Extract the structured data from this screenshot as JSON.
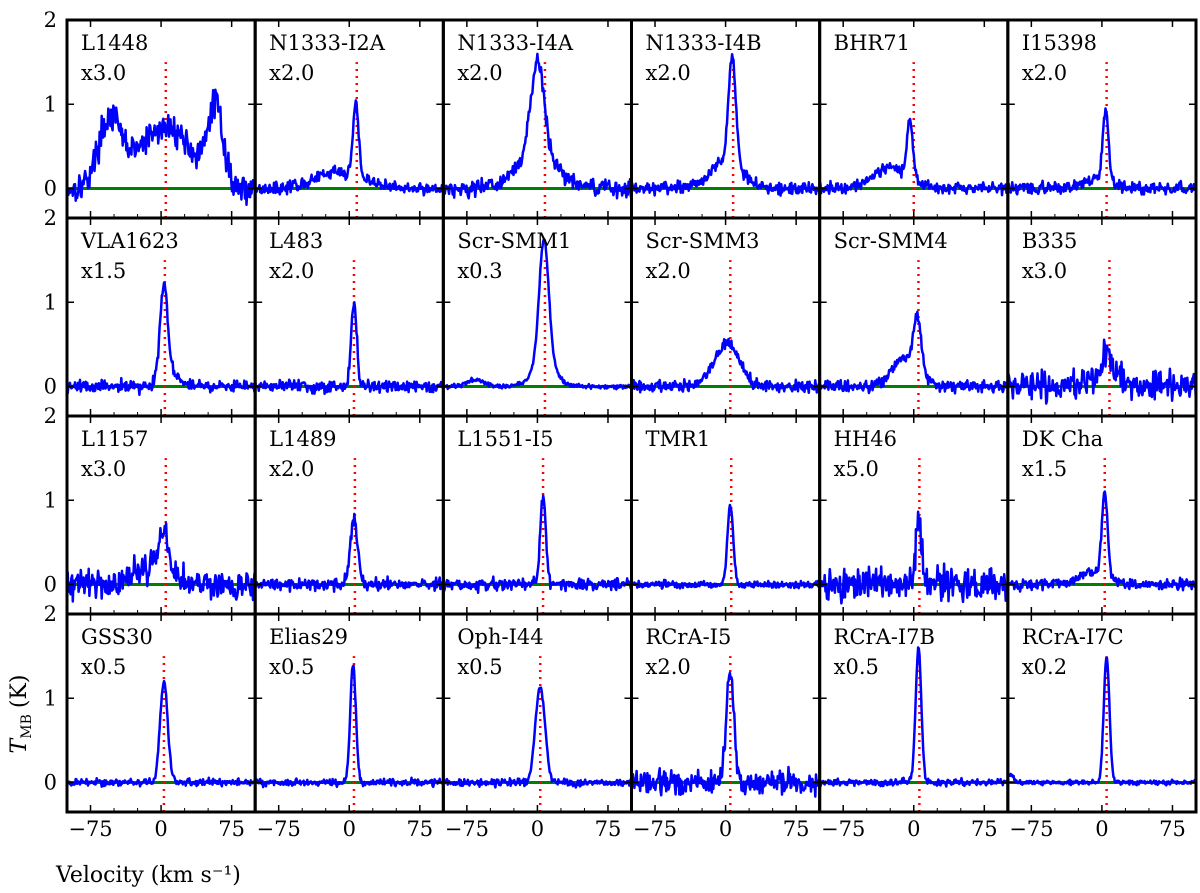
{
  "chart_data": {
    "type": "line",
    "layout": "4x6 grid of spectra sharing axes",
    "xlabel": "Velocity (km s⁻¹)",
    "ylabel": "T_MB (K)",
    "ylabel_main": "T",
    "ylabel_sub": "MB",
    "ylabel_unit": "(K)",
    "xlim": [
      -100,
      100
    ],
    "ylim": [
      -0.35,
      2.0
    ],
    "xticks": [
      -75,
      0,
      75
    ],
    "xtick_labels": [
      "−75",
      "0",
      "75"
    ],
    "yticks": [
      0,
      1,
      2
    ],
    "ytick_labels": [
      "0",
      "1",
      "2"
    ],
    "colors": {
      "spectrum": "#0000ff",
      "baseline": "#008000",
      "marker": "#ff0000",
      "axes": "#000000"
    },
    "panels": [
      {
        "name": "L1448",
        "scale": "x3.0",
        "v_marker": 5,
        "components": [
          {
            "v": -55,
            "amp": 0.75,
            "w": 12
          },
          {
            "v": -10,
            "amp": 0.5,
            "w": 25
          },
          {
            "v": 20,
            "amp": 0.4,
            "w": 20
          },
          {
            "v": 58,
            "amp": 0.95,
            "w": 8
          }
        ],
        "noise": 0.12
      },
      {
        "name": "N1333-I2A",
        "scale": "x2.0",
        "v_marker": 8,
        "components": [
          {
            "v": 7,
            "amp": 0.85,
            "w": 3
          },
          {
            "v": -10,
            "amp": 0.2,
            "w": 25
          }
        ],
        "noise": 0.05
      },
      {
        "name": "N1333-I4A",
        "scale": "x2.0",
        "v_marker": 8,
        "components": [
          {
            "v": 0,
            "amp": 1.1,
            "w": 7
          },
          {
            "v": 0,
            "amp": 0.4,
            "w": 22
          }
        ],
        "noise": 0.07
      },
      {
        "name": "N1333-I4B",
        "scale": "x2.0",
        "v_marker": 8,
        "components": [
          {
            "v": 7,
            "amp": 1.3,
            "w": 4
          },
          {
            "v": 0,
            "amp": 0.3,
            "w": 18
          }
        ],
        "noise": 0.05
      },
      {
        "name": "BHR71",
        "scale": "",
        "v_marker": 0,
        "components": [
          {
            "v": -4,
            "amp": 0.7,
            "w": 3
          },
          {
            "v": -25,
            "amp": 0.25,
            "w": 20
          }
        ],
        "noise": 0.05
      },
      {
        "name": "I15398",
        "scale": "x2.0",
        "v_marker": 5,
        "components": [
          {
            "v": 4,
            "amp": 0.85,
            "w": 3
          },
          {
            "v": -5,
            "amp": 0.12,
            "w": 15
          }
        ],
        "noise": 0.05
      },
      {
        "name": "VLA1623",
        "scale": "x1.5",
        "v_marker": 4,
        "components": [
          {
            "v": 3,
            "amp": 1.1,
            "w": 4
          },
          {
            "v": 10,
            "amp": 0.15,
            "w": 10
          }
        ],
        "noise": 0.05
      },
      {
        "name": "L483",
        "scale": "x2.0",
        "v_marker": 5,
        "components": [
          {
            "v": 5,
            "amp": 1.0,
            "w": 3
          }
        ],
        "noise": 0.05
      },
      {
        "name": "Scr-SMM1",
        "scale": "x0.3",
        "v_marker": 8,
        "components": [
          {
            "v": 7,
            "amp": 1.45,
            "w": 5
          },
          {
            "v": 7,
            "amp": 0.3,
            "w": 12
          },
          {
            "v": -65,
            "amp": 0.08,
            "w": 10
          }
        ],
        "noise": 0.02
      },
      {
        "name": "Scr-SMM3",
        "scale": "x2.0",
        "v_marker": 5,
        "components": [
          {
            "v": 0,
            "amp": 0.45,
            "w": 14
          },
          {
            "v": 5,
            "amp": 0.1,
            "w": 6
          }
        ],
        "noise": 0.05
      },
      {
        "name": "Scr-SMM4",
        "scale": "",
        "v_marker": 5,
        "components": [
          {
            "v": 4,
            "amp": 0.6,
            "w": 4
          },
          {
            "v": -8,
            "amp": 0.35,
            "w": 14
          }
        ],
        "noise": 0.05
      },
      {
        "name": "B335",
        "scale": "x3.0",
        "v_marker": 8,
        "components": [
          {
            "v": 6,
            "amp": 0.35,
            "w": 5
          },
          {
            "v": 0,
            "amp": 0.1,
            "w": 20
          }
        ],
        "noise": 0.12
      },
      {
        "name": "L1157",
        "scale": "x3.0",
        "v_marker": 5,
        "components": [
          {
            "v": 3,
            "amp": 0.5,
            "w": 5
          },
          {
            "v": -10,
            "amp": 0.2,
            "w": 20
          }
        ],
        "noise": 0.12
      },
      {
        "name": "L1489",
        "scale": "x2.0",
        "v_marker": 6,
        "components": [
          {
            "v": 5,
            "amp": 0.75,
            "w": 4
          }
        ],
        "noise": 0.05
      },
      {
        "name": "L1551-I5",
        "scale": "",
        "v_marker": 6,
        "components": [
          {
            "v": 6,
            "amp": 1.05,
            "w": 3
          }
        ],
        "noise": 0.05
      },
      {
        "name": "TMR1",
        "scale": "",
        "v_marker": 6,
        "components": [
          {
            "v": 5,
            "amp": 0.95,
            "w": 3
          }
        ],
        "noise": 0.03
      },
      {
        "name": "HH46",
        "scale": "x5.0",
        "v_marker": 6,
        "components": [
          {
            "v": 5,
            "amp": 0.8,
            "w": 3
          }
        ],
        "noise": 0.14
      },
      {
        "name": "DK Cha",
        "scale": "x1.5",
        "v_marker": 3,
        "components": [
          {
            "v": 3,
            "amp": 1.0,
            "w": 3
          },
          {
            "v": -10,
            "amp": 0.15,
            "w": 15
          }
        ],
        "noise": 0.05
      },
      {
        "name": "GSS30",
        "scale": "x0.5",
        "v_marker": 3,
        "components": [
          {
            "v": 3,
            "amp": 1.2,
            "w": 4
          }
        ],
        "noise": 0.03
      },
      {
        "name": "Elias29",
        "scale": "x0.5",
        "v_marker": 5,
        "components": [
          {
            "v": 4,
            "amp": 1.4,
            "w": 3
          }
        ],
        "noise": 0.03
      },
      {
        "name": "Oph-I44",
        "scale": "x0.5",
        "v_marker": 3,
        "components": [
          {
            "v": 3,
            "amp": 1.15,
            "w": 5
          }
        ],
        "noise": 0.03
      },
      {
        "name": "RCrA-I5",
        "scale": "x2.0",
        "v_marker": 5,
        "components": [
          {
            "v": 5,
            "amp": 1.3,
            "w": 4
          }
        ],
        "noise": 0.1
      },
      {
        "name": "RCrA-I7B",
        "scale": "x0.5",
        "v_marker": 6,
        "components": [
          {
            "v": 5,
            "amp": 1.6,
            "w": 3
          }
        ],
        "noise": 0.03
      },
      {
        "name": "RCrA-I7C",
        "scale": "x0.2",
        "v_marker": 5,
        "components": [
          {
            "v": 5,
            "amp": 1.5,
            "w": 3
          },
          {
            "v": -98,
            "amp": 0.1,
            "w": 4
          }
        ],
        "noise": 0.02
      }
    ]
  }
}
